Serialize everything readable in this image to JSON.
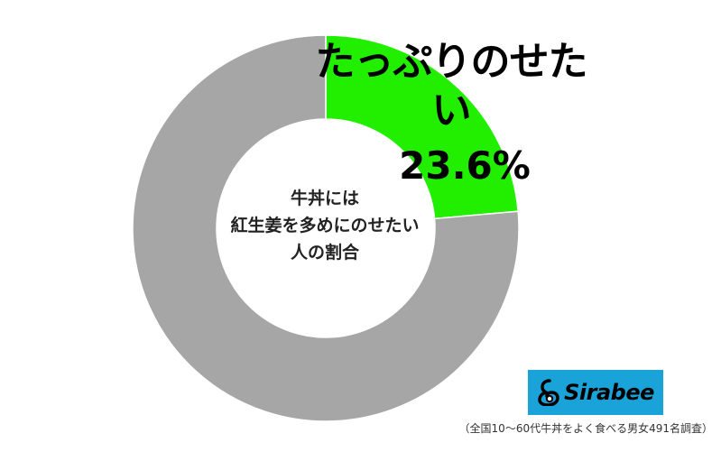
{
  "chart_data": {
    "type": "pie",
    "title": "牛丼には紅生姜を多めにのせたい人の割合",
    "center_label_lines": [
      "牛丼には",
      "紅生姜を多めにのせたい",
      "人の割合"
    ],
    "slices": [
      {
        "name": "たっぷりのせたい",
        "value": 23.6,
        "value_label": "23.6%",
        "color": "#22ee00"
      },
      {
        "value": 76.4,
        "color": "#a6a6a6"
      }
    ],
    "donut": true
  },
  "logo": {
    "text": "Sirabee",
    "color": "#1aa3d9"
  },
  "footnote": "（全国10〜60代牛丼をよく食べる男女491名調査）"
}
